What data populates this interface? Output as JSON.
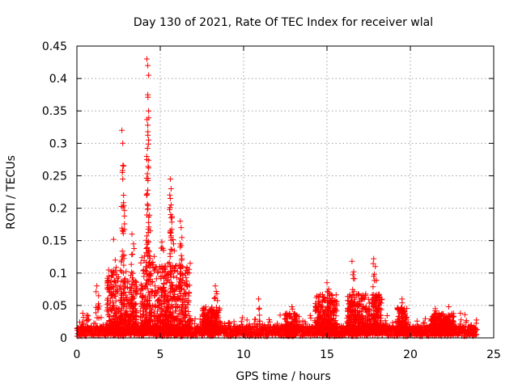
{
  "chart_data": {
    "type": "scatter",
    "title": "Day 130 of 2021, Rate Of TEC Index for receiver wlal",
    "xlabel": "GPS time / hours",
    "ylabel": "ROTI / TECUs",
    "xlim": [
      0,
      25
    ],
    "ylim": [
      0,
      0.45
    ],
    "xticks": [
      "0",
      "5",
      "10",
      "15",
      "20",
      "25"
    ],
    "yticks": [
      "0",
      "0.05",
      "0.1",
      "0.15",
      "0.2",
      "0.25",
      "0.3",
      "0.35",
      "0.4",
      "0.45"
    ],
    "grid": true,
    "marker": "+",
    "color": "#ff0000",
    "x_range_of_data": [
      0,
      24
    ],
    "base_level": 0.012,
    "spikes": [
      {
        "x": 0.35,
        "y": 0.038
      },
      {
        "x": 0.6,
        "y": 0.035
      },
      {
        "x": 1.2,
        "y": 0.08
      },
      {
        "x": 1.3,
        "y": 0.065
      },
      {
        "x": 2.2,
        "y": 0.152
      },
      {
        "x": 2.3,
        "y": 0.12
      },
      {
        "x": 2.7,
        "y": 0.32
      },
      {
        "x": 2.75,
        "y": 0.3
      },
      {
        "x": 2.8,
        "y": 0.265
      },
      {
        "x": 2.75,
        "y": 0.245
      },
      {
        "x": 2.8,
        "y": 0.22
      },
      {
        "x": 2.85,
        "y": 0.188
      },
      {
        "x": 3.3,
        "y": 0.16
      },
      {
        "x": 3.4,
        "y": 0.145
      },
      {
        "x": 4.2,
        "y": 0.43
      },
      {
        "x": 4.25,
        "y": 0.42
      },
      {
        "x": 4.3,
        "y": 0.405
      },
      {
        "x": 4.25,
        "y": 0.375
      },
      {
        "x": 4.3,
        "y": 0.35
      },
      {
        "x": 4.25,
        "y": 0.328
      },
      {
        "x": 4.3,
        "y": 0.305
      },
      {
        "x": 4.2,
        "y": 0.275
      },
      {
        "x": 4.3,
        "y": 0.262
      },
      {
        "x": 4.2,
        "y": 0.22
      },
      {
        "x": 4.3,
        "y": 0.178
      },
      {
        "x": 4.4,
        "y": 0.165
      },
      {
        "x": 5.1,
        "y": 0.148
      },
      {
        "x": 5.2,
        "y": 0.135
      },
      {
        "x": 5.6,
        "y": 0.245
      },
      {
        "x": 5.65,
        "y": 0.23
      },
      {
        "x": 5.6,
        "y": 0.215
      },
      {
        "x": 5.65,
        "y": 0.205
      },
      {
        "x": 5.7,
        "y": 0.185
      },
      {
        "x": 5.6,
        "y": 0.165
      },
      {
        "x": 5.8,
        "y": 0.145
      },
      {
        "x": 6.2,
        "y": 0.18
      },
      {
        "x": 6.25,
        "y": 0.17
      },
      {
        "x": 6.3,
        "y": 0.155
      },
      {
        "x": 6.2,
        "y": 0.14
      },
      {
        "x": 6.3,
        "y": 0.122
      },
      {
        "x": 7.6,
        "y": 0.045
      },
      {
        "x": 8.3,
        "y": 0.08
      },
      {
        "x": 8.4,
        "y": 0.068
      },
      {
        "x": 10.9,
        "y": 0.06
      },
      {
        "x": 12.9,
        "y": 0.048
      },
      {
        "x": 14.5,
        "y": 0.055
      },
      {
        "x": 15.0,
        "y": 0.085
      },
      {
        "x": 15.1,
        "y": 0.075
      },
      {
        "x": 16.5,
        "y": 0.118
      },
      {
        "x": 16.6,
        "y": 0.102
      },
      {
        "x": 17.8,
        "y": 0.122
      },
      {
        "x": 17.9,
        "y": 0.11
      },
      {
        "x": 17.8,
        "y": 0.095
      },
      {
        "x": 19.5,
        "y": 0.06
      },
      {
        "x": 21.5,
        "y": 0.045
      },
      {
        "x": 22.3,
        "y": 0.048
      },
      {
        "x": 23.0,
        "y": 0.038
      }
    ],
    "activity_bands": [
      {
        "from": 1.8,
        "to": 3.6,
        "amplitude": 0.1
      },
      {
        "from": 3.8,
        "to": 4.8,
        "amplitude": 0.12
      },
      {
        "from": 4.8,
        "to": 6.8,
        "amplitude": 0.11
      },
      {
        "from": 7.5,
        "to": 8.6,
        "amplitude": 0.04
      },
      {
        "from": 12.5,
        "to": 13.2,
        "amplitude": 0.03
      },
      {
        "from": 14.3,
        "to": 15.6,
        "amplitude": 0.06
      },
      {
        "from": 16.2,
        "to": 18.3,
        "amplitude": 0.06
      },
      {
        "from": 19.2,
        "to": 19.8,
        "amplitude": 0.04
      },
      {
        "from": 21.2,
        "to": 22.6,
        "amplitude": 0.03
      }
    ]
  }
}
